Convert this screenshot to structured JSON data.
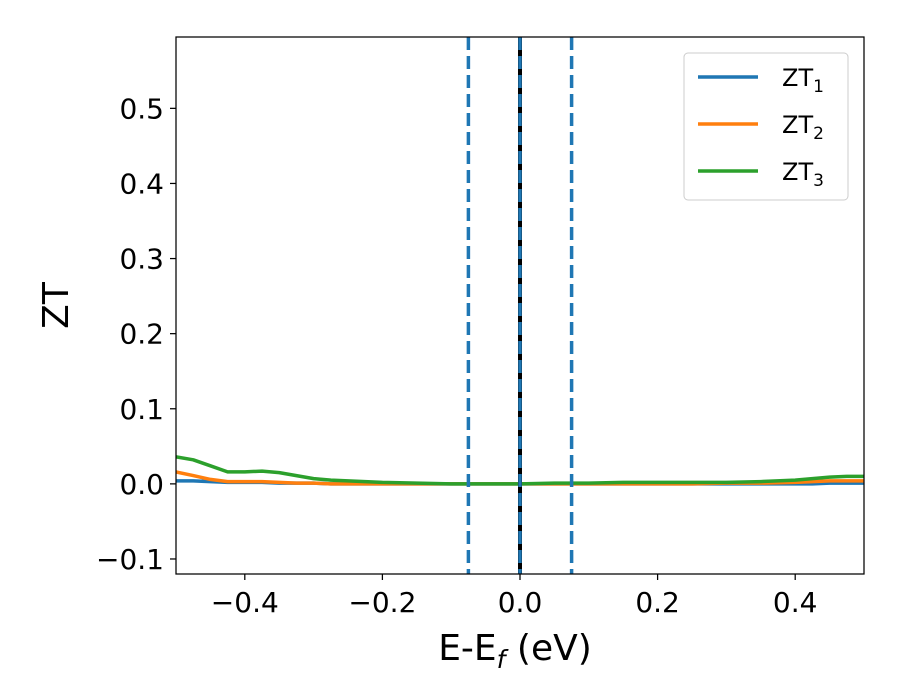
{
  "chart_data": {
    "type": "line",
    "xlabel": "E-E",
    "xlabel_sub": "f",
    "xlabel_unit": " (eV)",
    "ylabel": "ZT",
    "xlim": [
      -0.5,
      0.5
    ],
    "ylim": [
      -0.12,
      0.595
    ],
    "x_ticks": [
      -0.4,
      -0.2,
      0.0,
      0.2,
      0.4
    ],
    "x_tick_labels": [
      "−0.4",
      "−0.2",
      "0.0",
      "0.2",
      "0.4"
    ],
    "y_ticks": [
      -0.1,
      0.0,
      0.1,
      0.2,
      0.3,
      0.4,
      0.5
    ],
    "y_tick_labels": [
      "−0.1",
      "0.0",
      "0.1",
      "0.2",
      "0.3",
      "0.4",
      "0.5"
    ],
    "grid": false,
    "legend_position": "top-right",
    "x": [
      -0.5,
      -0.475,
      -0.45,
      -0.425,
      -0.4,
      -0.375,
      -0.35,
      -0.325,
      -0.3,
      -0.275,
      -0.25,
      -0.225,
      -0.2,
      -0.15,
      -0.1,
      -0.05,
      0.0,
      0.05,
      0.1,
      0.15,
      0.2,
      0.25,
      0.3,
      0.35,
      0.4,
      0.425,
      0.45,
      0.475,
      0.5
    ],
    "series": [
      {
        "name": "ZT",
        "subscript": "1",
        "color": "#1f77b4",
        "values": [
          0.004,
          0.004,
          0.003,
          0.002,
          0.002,
          0.002,
          0.001,
          0.001,
          0.001,
          0.0,
          0.0,
          0.0,
          0.0,
          0.0,
          0.0,
          0.0,
          0.0,
          0.0,
          0.0,
          0.0,
          0.0,
          0.0,
          0.0,
          0.0,
          0.0,
          0.0,
          0.001,
          0.001,
          0.001
        ]
      },
      {
        "name": "ZT",
        "subscript": "2",
        "color": "#ff7f0e",
        "values": [
          0.016,
          0.011,
          0.006,
          0.003,
          0.003,
          0.003,
          0.002,
          0.001,
          0.001,
          0.0,
          0.0,
          0.0,
          0.0,
          0.0,
          0.0,
          0.0,
          0.0,
          0.0,
          0.0,
          0.0,
          0.0,
          0.0,
          0.001,
          0.001,
          0.002,
          0.003,
          0.004,
          0.004,
          0.004
        ]
      },
      {
        "name": "ZT",
        "subscript": "3",
        "color": "#2ca02c",
        "values": [
          0.036,
          0.032,
          0.024,
          0.016,
          0.016,
          0.017,
          0.015,
          0.011,
          0.007,
          0.005,
          0.004,
          0.003,
          0.002,
          0.001,
          0.0,
          0.0,
          0.0,
          0.001,
          0.001,
          0.002,
          0.002,
          0.002,
          0.002,
          0.003,
          0.005,
          0.007,
          0.009,
          0.01,
          0.01
        ]
      }
    ],
    "vlines": [
      {
        "x": -0.075,
        "color": "#1f77b4",
        "style": "dashed"
      },
      {
        "x": 0.0,
        "color": "#000000",
        "style": "solid"
      },
      {
        "x": 0.0,
        "color": "#1f77b4",
        "style": "dashed"
      },
      {
        "x": 0.075,
        "color": "#1f77b4",
        "style": "dashed"
      }
    ]
  }
}
